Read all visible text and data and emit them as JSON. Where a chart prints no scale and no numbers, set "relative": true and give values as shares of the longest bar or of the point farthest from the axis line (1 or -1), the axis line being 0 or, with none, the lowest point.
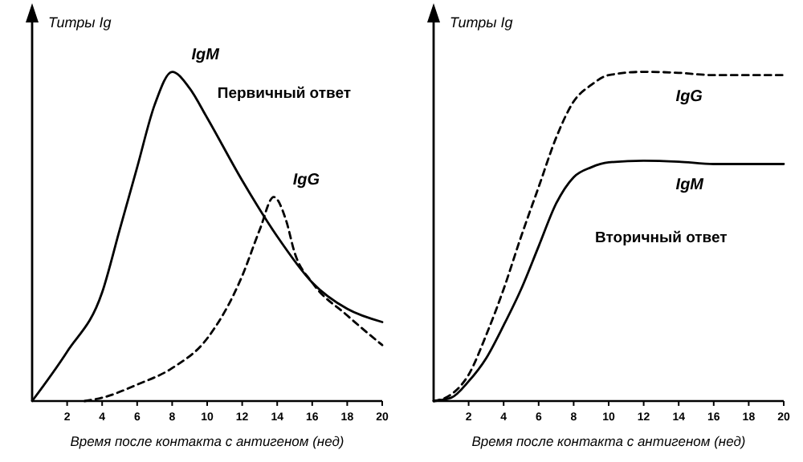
{
  "chart_data": [
    {
      "type": "line",
      "relative": true,
      "xlabel": "Время после контакта с антигеном (нед)",
      "ylabel": "Титры Ig",
      "xlim": [
        0,
        20
      ],
      "xticks": [
        2,
        4,
        6,
        8,
        10,
        12,
        14,
        16,
        18,
        20
      ],
      "annotations": [
        "Первичный ответ"
      ],
      "series": [
        {
          "name": "IgM",
          "color": "#000000",
          "line_style": "solid",
          "x": [
            0,
            2,
            4,
            5,
            6,
            7,
            8,
            9,
            10,
            12,
            14,
            16,
            18,
            20
          ],
          "values": [
            0,
            0.15,
            0.33,
            0.52,
            0.71,
            0.9,
            1,
            0.95,
            0.86,
            0.67,
            0.5,
            0.36,
            0.28,
            0.24
          ]
        },
        {
          "name": "IgG",
          "color": "#000000",
          "line_style": "dashed",
          "x": [
            3,
            4,
            6,
            8,
            10,
            12,
            13,
            13.8,
            14.5,
            15,
            16,
            18,
            20
          ],
          "values": [
            0,
            0.01,
            0.05,
            0.1,
            0.19,
            0.38,
            0.52,
            0.62,
            0.55,
            0.45,
            0.36,
            0.26,
            0.17
          ]
        }
      ]
    },
    {
      "type": "line",
      "relative": true,
      "xlabel": "Время после контакта с антигеном (нед)",
      "ylabel": "Титры Ig",
      "xlim": [
        0,
        20
      ],
      "xticks": [
        2,
        4,
        6,
        8,
        10,
        12,
        14,
        16,
        18,
        20
      ],
      "annotations": [
        "Вторичный ответ"
      ],
      "series": [
        {
          "name": "IgG",
          "color": "#000000",
          "line_style": "dashed",
          "x": [
            0,
            1,
            2,
            3,
            4,
            5,
            6,
            7,
            8,
            9,
            10,
            12,
            14,
            16,
            18,
            20
          ],
          "values": [
            0,
            0.02,
            0.08,
            0.2,
            0.34,
            0.5,
            0.65,
            0.8,
            0.91,
            0.96,
            0.99,
            1,
            0.997,
            0.99,
            0.99,
            0.99
          ]
        },
        {
          "name": "IgM",
          "color": "#000000",
          "line_style": "solid",
          "x": [
            0,
            1,
            2,
            3,
            4,
            5,
            6,
            7,
            8,
            9,
            10,
            12,
            14,
            16,
            18,
            20
          ],
          "values": [
            0,
            0.01,
            0.06,
            0.13,
            0.23,
            0.34,
            0.47,
            0.6,
            0.68,
            0.71,
            0.725,
            0.73,
            0.727,
            0.72,
            0.72,
            0.72
          ]
        }
      ]
    }
  ]
}
